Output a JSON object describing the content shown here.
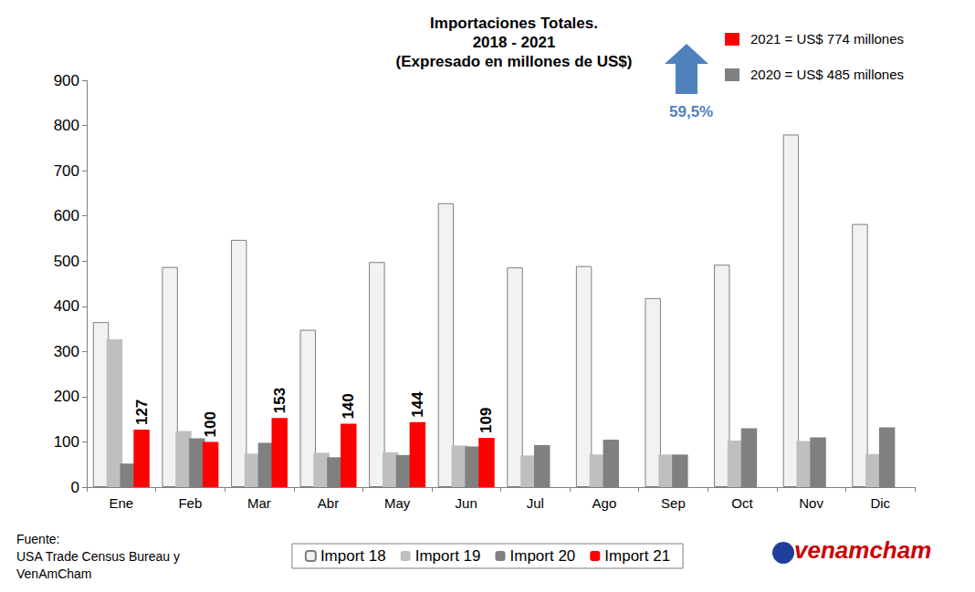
{
  "chart_data": {
    "type": "bar",
    "title": "Importaciones Totales.\n2018 - 2021\n(Expresado en millones de US$)",
    "categories": [
      "Ene",
      "Feb",
      "Mar",
      "Abr",
      "May",
      "Jun",
      "Jul",
      "Ago",
      "Sep",
      "Oct",
      "Nov",
      "Dic"
    ],
    "series": [
      {
        "name": "Import 18",
        "color": "#f2f2f2",
        "values": [
          365,
          487,
          547,
          348,
          498,
          628,
          486,
          489,
          418,
          492,
          780,
          582
        ]
      },
      {
        "name": "Import 19",
        "color": "#bfbfbf",
        "values": [
          327,
          124,
          74,
          76,
          77,
          92,
          70,
          72,
          72,
          103,
          102,
          73
        ]
      },
      {
        "name": "Import 20",
        "color": "#808080",
        "values": [
          52,
          108,
          98,
          66,
          71,
          90,
          93,
          105,
          72,
          130,
          110,
          132
        ]
      },
      {
        "name": "Import 21",
        "color": "#ff0000",
        "data_labels": true,
        "values": [
          127,
          100,
          153,
          140,
          144,
          109,
          null,
          null,
          null,
          null,
          null,
          null
        ]
      }
    ],
    "ylim": [
      0,
      900
    ],
    "yticks": [
      0,
      100,
      200,
      300,
      400,
      500,
      600,
      700,
      800,
      900
    ],
    "grid": false,
    "legend": "bottom",
    "annotations": [
      {
        "text": "59,5%",
        "color": "#4f81bd"
      },
      {
        "text": "2021 = US$ 774 millones",
        "color": "#ff0000"
      },
      {
        "text": "2020 = US$ 485 millones",
        "color": "#808080"
      }
    ],
    "source": [
      "Fuente:",
      "USA Trade Census Bureau y",
      "VenAmCham"
    ],
    "logo": "venamcham"
  }
}
